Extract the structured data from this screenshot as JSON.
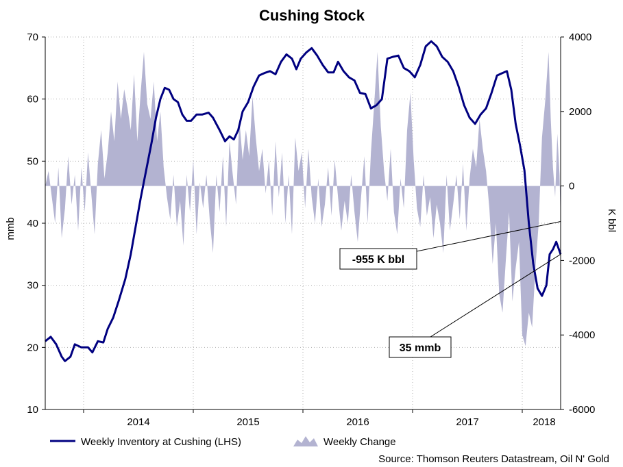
{
  "chart_data": {
    "type": "line",
    "title": "Cushing Stock",
    "ylabel_left": "mmb",
    "ylabel_right": "K bbl",
    "ylim_left": [
      10,
      70
    ],
    "ylim_right": [
      -6000,
      4000
    ],
    "yticks_left": [
      "10",
      "20",
      "30",
      "40",
      "50",
      "60",
      "70"
    ],
    "yticks_right": [
      "-6000",
      "-4000",
      "-2000",
      "0",
      "2000",
      "4000"
    ],
    "x_range": [
      2013.65,
      2018.35
    ],
    "year_boundaries": [
      2014,
      2015,
      2016,
      2017,
      2018
    ],
    "xticks": [
      {
        "label": "2014",
        "x": 2014.5
      },
      {
        "label": "2015",
        "x": 2015.5
      },
      {
        "label": "2016",
        "x": 2016.5
      },
      {
        "label": "2017",
        "x": 2017.5
      },
      {
        "label": "2018",
        "x": 2018.2
      }
    ],
    "grid": true,
    "legend_position": "bottom-left",
    "series": [
      {
        "name": "Weekly Inventory at Cushing (LHS)",
        "axis": "left",
        "kind": "line",
        "color": "#000080",
        "points": [
          [
            2013.65,
            21.0
          ],
          [
            2013.7,
            21.7
          ],
          [
            2013.75,
            20.5
          ],
          [
            2013.8,
            18.5
          ],
          [
            2013.83,
            17.8
          ],
          [
            2013.88,
            18.5
          ],
          [
            2013.92,
            20.5
          ],
          [
            2013.98,
            20.0
          ],
          [
            2014.04,
            20.0
          ],
          [
            2014.08,
            19.2
          ],
          [
            2014.13,
            21.0
          ],
          [
            2014.18,
            20.8
          ],
          [
            2014.22,
            23.0
          ],
          [
            2014.27,
            24.8
          ],
          [
            2014.32,
            27.5
          ],
          [
            2014.38,
            31.0
          ],
          [
            2014.43,
            35.0
          ],
          [
            2014.48,
            40.0
          ],
          [
            2014.52,
            44.0
          ],
          [
            2014.57,
            48.5
          ],
          [
            2014.62,
            53.0
          ],
          [
            2014.66,
            57.0
          ],
          [
            2014.7,
            60.0
          ],
          [
            2014.74,
            61.8
          ],
          [
            2014.78,
            61.5
          ],
          [
            2014.82,
            60.0
          ],
          [
            2014.86,
            59.5
          ],
          [
            2014.9,
            57.5
          ],
          [
            2014.94,
            56.5
          ],
          [
            2014.98,
            56.5
          ],
          [
            2015.03,
            57.5
          ],
          [
            2015.08,
            57.5
          ],
          [
            2015.14,
            57.8
          ],
          [
            2015.18,
            57.0
          ],
          [
            2015.24,
            55.0
          ],
          [
            2015.29,
            53.2
          ],
          [
            2015.33,
            54.0
          ],
          [
            2015.37,
            53.5
          ],
          [
            2015.41,
            55.0
          ],
          [
            2015.45,
            58.0
          ],
          [
            2015.5,
            59.5
          ],
          [
            2015.55,
            62.0
          ],
          [
            2015.6,
            63.8
          ],
          [
            2015.65,
            64.2
          ],
          [
            2015.7,
            64.5
          ],
          [
            2015.75,
            64.0
          ],
          [
            2015.8,
            66.0
          ],
          [
            2015.85,
            67.2
          ],
          [
            2015.9,
            66.5
          ],
          [
            2015.94,
            64.8
          ],
          [
            2015.98,
            66.5
          ],
          [
            2016.03,
            67.5
          ],
          [
            2016.08,
            68.2
          ],
          [
            2016.13,
            67.0
          ],
          [
            2016.18,
            65.5
          ],
          [
            2016.23,
            64.3
          ],
          [
            2016.28,
            64.3
          ],
          [
            2016.32,
            66.0
          ],
          [
            2016.37,
            64.5
          ],
          [
            2016.42,
            63.5
          ],
          [
            2016.47,
            63.0
          ],
          [
            2016.52,
            61.0
          ],
          [
            2016.57,
            60.8
          ],
          [
            2016.62,
            58.5
          ],
          [
            2016.67,
            59.0
          ],
          [
            2016.72,
            60.0
          ],
          [
            2016.77,
            66.5
          ],
          [
            2016.82,
            66.8
          ],
          [
            2016.87,
            67.0
          ],
          [
            2016.92,
            65.0
          ],
          [
            2016.97,
            64.5
          ],
          [
            2017.02,
            63.5
          ],
          [
            2017.07,
            65.5
          ],
          [
            2017.12,
            68.5
          ],
          [
            2017.17,
            69.3
          ],
          [
            2017.22,
            68.5
          ],
          [
            2017.27,
            66.8
          ],
          [
            2017.32,
            66.0
          ],
          [
            2017.37,
            64.5
          ],
          [
            2017.42,
            62.0
          ],
          [
            2017.47,
            59.0
          ],
          [
            2017.52,
            57.0
          ],
          [
            2017.57,
            56.0
          ],
          [
            2017.62,
            57.5
          ],
          [
            2017.67,
            58.5
          ],
          [
            2017.72,
            61.0
          ],
          [
            2017.77,
            63.8
          ],
          [
            2017.82,
            64.2
          ],
          [
            2017.86,
            64.5
          ],
          [
            2017.9,
            61.5
          ],
          [
            2017.94,
            56.0
          ],
          [
            2017.98,
            52.5
          ],
          [
            2018.02,
            48.5
          ],
          [
            2018.06,
            40.0
          ],
          [
            2018.1,
            33.5
          ],
          [
            2018.14,
            29.5
          ],
          [
            2018.18,
            28.3
          ],
          [
            2018.22,
            30.0
          ],
          [
            2018.25,
            35.0
          ],
          [
            2018.28,
            35.8
          ],
          [
            2018.31,
            37.0
          ],
          [
            2018.33,
            36.0
          ],
          [
            2018.35,
            35.0
          ]
        ]
      },
      {
        "name": "Weekly Change",
        "axis": "right",
        "kind": "area",
        "color": "#b3b3d1",
        "points": [
          [
            2013.65,
            0
          ],
          [
            2013.68,
            400
          ],
          [
            2013.71,
            -300
          ],
          [
            2013.74,
            -1000
          ],
          [
            2013.77,
            500
          ],
          [
            2013.8,
            -1400
          ],
          [
            2013.83,
            -600
          ],
          [
            2013.86,
            800
          ],
          [
            2013.89,
            -500
          ],
          [
            2013.92,
            300
          ],
          [
            2013.95,
            -1200
          ],
          [
            2013.98,
            500
          ],
          [
            2014.01,
            -700
          ],
          [
            2014.04,
            900
          ],
          [
            2014.07,
            -200
          ],
          [
            2014.1,
            -1300
          ],
          [
            2014.13,
            600
          ],
          [
            2014.16,
            1500
          ],
          [
            2014.19,
            200
          ],
          [
            2014.22,
            900
          ],
          [
            2014.25,
            2000
          ],
          [
            2014.28,
            1200
          ],
          [
            2014.31,
            2800
          ],
          [
            2014.34,
            1800
          ],
          [
            2014.37,
            2600
          ],
          [
            2014.4,
            2100
          ],
          [
            2014.43,
            1500
          ],
          [
            2014.46,
            3000
          ],
          [
            2014.49,
            1200
          ],
          [
            2014.52,
            2500
          ],
          [
            2014.55,
            3600
          ],
          [
            2014.58,
            2200
          ],
          [
            2014.61,
            1800
          ],
          [
            2014.64,
            2800
          ],
          [
            2014.67,
            1200
          ],
          [
            2014.7,
            2000
          ],
          [
            2014.73,
            500
          ],
          [
            2014.76,
            -300
          ],
          [
            2014.79,
            -900
          ],
          [
            2014.82,
            300
          ],
          [
            2014.85,
            -1100
          ],
          [
            2014.88,
            -400
          ],
          [
            2014.91,
            -1600
          ],
          [
            2014.94,
            300
          ],
          [
            2014.97,
            -700
          ],
          [
            2015.0,
            700
          ],
          [
            2015.03,
            -1300
          ],
          [
            2015.06,
            100
          ],
          [
            2015.09,
            -600
          ],
          [
            2015.12,
            300
          ],
          [
            2015.15,
            -900
          ],
          [
            2015.18,
            -1800
          ],
          [
            2015.21,
            300
          ],
          [
            2015.24,
            -700
          ],
          [
            2015.27,
            800
          ],
          [
            2015.3,
            -1100
          ],
          [
            2015.33,
            1200
          ],
          [
            2015.36,
            300
          ],
          [
            2015.39,
            -500
          ],
          [
            2015.42,
            1800
          ],
          [
            2015.45,
            700
          ],
          [
            2015.48,
            1500
          ],
          [
            2015.51,
            800
          ],
          [
            2015.54,
            2400
          ],
          [
            2015.57,
            1300
          ],
          [
            2015.6,
            400
          ],
          [
            2015.63,
            1000
          ],
          [
            2015.66,
            -200
          ],
          [
            2015.69,
            700
          ],
          [
            2015.72,
            -800
          ],
          [
            2015.75,
            1200
          ],
          [
            2015.78,
            -300
          ],
          [
            2015.81,
            900
          ],
          [
            2015.84,
            -1000
          ],
          [
            2015.87,
            300
          ],
          [
            2015.9,
            -1300
          ],
          [
            2015.93,
            1300
          ],
          [
            2015.96,
            400
          ],
          [
            2015.99,
            900
          ],
          [
            2016.02,
            -600
          ],
          [
            2016.05,
            1000
          ],
          [
            2016.08,
            -300
          ],
          [
            2016.11,
            -1000
          ],
          [
            2016.14,
            200
          ],
          [
            2016.17,
            -1100
          ],
          [
            2016.2,
            -500
          ],
          [
            2016.23,
            500
          ],
          [
            2016.26,
            -800
          ],
          [
            2016.29,
            700
          ],
          [
            2016.32,
            -300
          ],
          [
            2016.35,
            -1200
          ],
          [
            2016.38,
            -400
          ],
          [
            2016.41,
            -1000
          ],
          [
            2016.44,
            300
          ],
          [
            2016.47,
            -700
          ],
          [
            2016.5,
            -1500
          ],
          [
            2016.53,
            -300
          ],
          [
            2016.56,
            800
          ],
          [
            2016.59,
            -1000
          ],
          [
            2016.62,
            900
          ],
          [
            2016.65,
            2200
          ],
          [
            2016.68,
            3600
          ],
          [
            2016.71,
            1600
          ],
          [
            2016.74,
            400
          ],
          [
            2016.77,
            -400
          ],
          [
            2016.8,
            1000
          ],
          [
            2016.83,
            -700
          ],
          [
            2016.86,
            -1300
          ],
          [
            2016.89,
            200
          ],
          [
            2016.92,
            -600
          ],
          [
            2016.95,
            1500
          ],
          [
            2016.98,
            2500
          ],
          [
            2017.01,
            700
          ],
          [
            2017.04,
            -600
          ],
          [
            2017.07,
            -1100
          ],
          [
            2017.1,
            300
          ],
          [
            2017.13,
            -800
          ],
          [
            2017.16,
            -300
          ],
          [
            2017.19,
            -1400
          ],
          [
            2017.22,
            -500
          ],
          [
            2017.25,
            -1000
          ],
          [
            2017.28,
            -1800
          ],
          [
            2017.31,
            300
          ],
          [
            2017.34,
            -1200
          ],
          [
            2017.37,
            -500
          ],
          [
            2017.4,
            300
          ],
          [
            2017.43,
            -900
          ],
          [
            2017.46,
            600
          ],
          [
            2017.49,
            -1200
          ],
          [
            2017.52,
            200
          ],
          [
            2017.55,
            1000
          ],
          [
            2017.58,
            500
          ],
          [
            2017.61,
            1800
          ],
          [
            2017.64,
            1000
          ],
          [
            2017.67,
            400
          ],
          [
            2017.7,
            -600
          ],
          [
            2017.73,
            -2100
          ],
          [
            2017.76,
            -1000
          ],
          [
            2017.79,
            -2900
          ],
          [
            2017.82,
            -3400
          ],
          [
            2017.85,
            -2000
          ],
          [
            2017.88,
            -700
          ],
          [
            2017.91,
            -3100
          ],
          [
            2017.94,
            -2200
          ],
          [
            2017.97,
            -1500
          ],
          [
            2018.0,
            -4000
          ],
          [
            2018.03,
            -4300
          ],
          [
            2018.06,
            -3400
          ],
          [
            2018.09,
            -3800
          ],
          [
            2018.12,
            -2200
          ],
          [
            2018.15,
            -1000
          ],
          [
            2018.18,
            1300
          ],
          [
            2018.21,
            2300
          ],
          [
            2018.24,
            3600
          ],
          [
            2018.26,
            1800
          ],
          [
            2018.28,
            500
          ],
          [
            2018.3,
            -300
          ],
          [
            2018.32,
            1400
          ],
          [
            2018.34,
            300
          ],
          [
            2018.35,
            -955
          ]
        ]
      }
    ],
    "annotations": [
      {
        "text": "-955 K bbl",
        "x": 2018.35,
        "y": -955,
        "axis": "right"
      },
      {
        "text": "35 mmb",
        "x": 2018.35,
        "y": 35,
        "axis": "left"
      }
    ],
    "source": "Source: Thomson Reuters Datastream, Oil N' Gold"
  }
}
